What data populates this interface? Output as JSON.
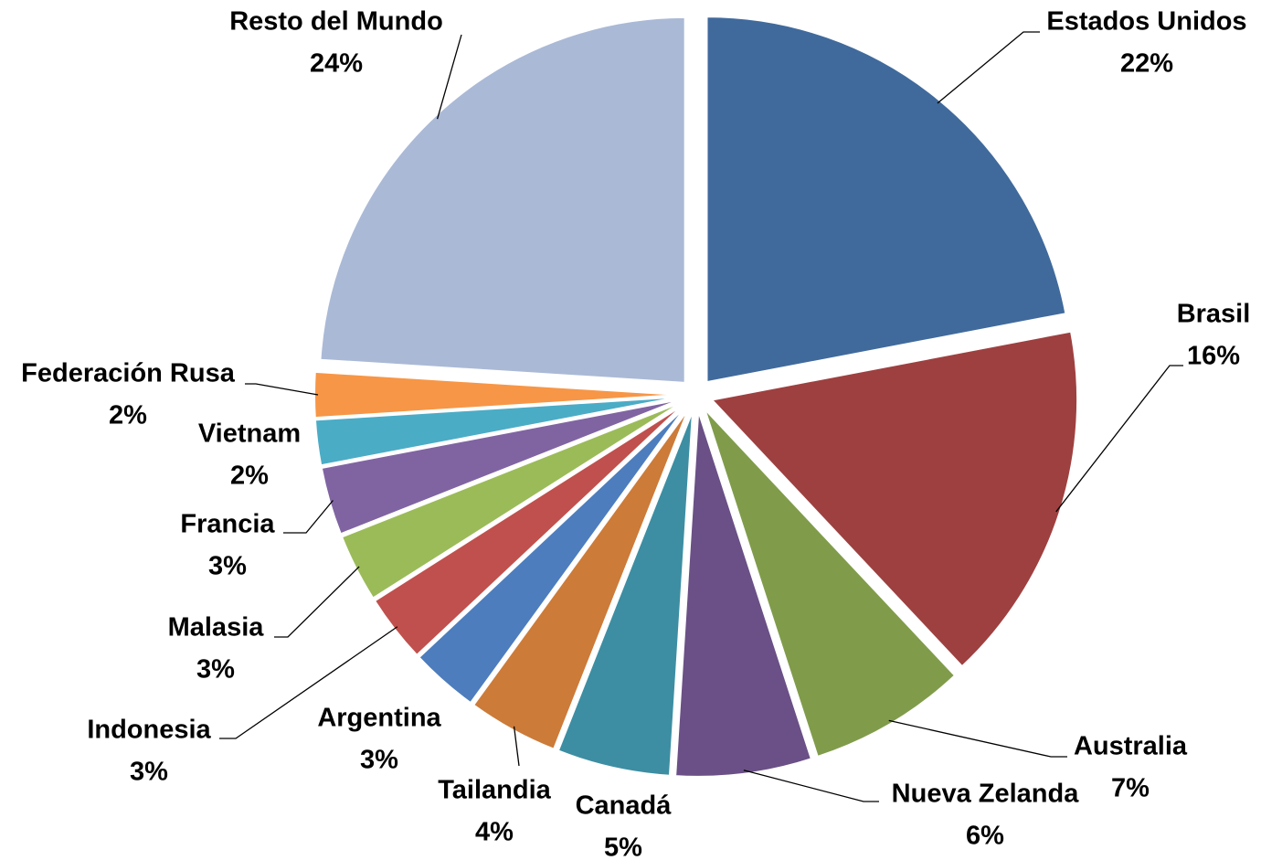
{
  "chart_data": {
    "type": "pie",
    "categories": [
      "Estados Unidos",
      "Brasil",
      "Australia",
      "Nueva Zelanda",
      "Canadá",
      "Tailandia",
      "Argentina",
      "Indonesia",
      "Malasia",
      "Francia",
      "Vietnam",
      "Federación Rusa",
      "Resto del Mundo"
    ],
    "values": [
      22,
      16,
      7,
      6,
      5,
      4,
      3,
      3,
      3,
      3,
      2,
      2,
      24
    ],
    "value_labels": [
      "22%",
      "16%",
      "7%",
      "6%",
      "5%",
      "4%",
      "3%",
      "3%",
      "3%",
      "3%",
      "2%",
      "2%",
      "24%"
    ],
    "colors": [
      "#406a9c",
      "#9e4040",
      "#809c4b",
      "#6a5086",
      "#3d8ea2",
      "#cc7b39",
      "#4d7dbd",
      "#c0504d",
      "#9bbb59",
      "#8064a2",
      "#4bacc6",
      "#f79646",
      "#aab9d6"
    ]
  }
}
